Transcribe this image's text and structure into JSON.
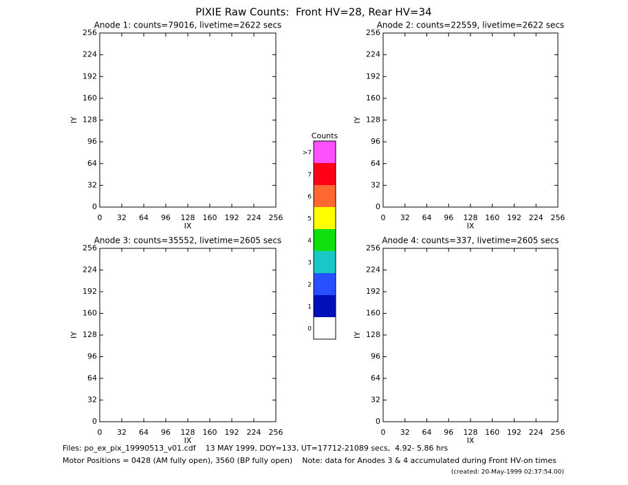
{
  "title": "PIXIE Raw Counts:  Front HV=28, Rear HV=34",
  "chart_data": [
    {
      "type": "heatmap",
      "title": "Anode 1: counts=79016, livetime=2622 secs",
      "xlabel": "IX",
      "ylabel": "IY",
      "xlim": [
        0,
        256
      ],
      "ylim": [
        0,
        256
      ],
      "xticks": [
        0,
        32,
        64,
        96,
        128,
        160,
        192,
        224,
        256
      ],
      "yticks": [
        0,
        32,
        64,
        96,
        128,
        160,
        192,
        224,
        256
      ]
    },
    {
      "type": "heatmap",
      "title": "Anode 2: counts=22559, livetime=2622 secs",
      "xlabel": "IX",
      "ylabel": "IY",
      "xlim": [
        0,
        256
      ],
      "ylim": [
        0,
        256
      ],
      "xticks": [
        0,
        32,
        64,
        96,
        128,
        160,
        192,
        224,
        256
      ],
      "yticks": [
        0,
        32,
        64,
        96,
        128,
        160,
        192,
        224,
        256
      ]
    },
    {
      "type": "heatmap",
      "title": "Anode 3: counts=35552, livetime=2605 secs",
      "xlabel": "IX",
      "ylabel": "IY",
      "xlim": [
        0,
        256
      ],
      "ylim": [
        0,
        256
      ],
      "xticks": [
        0,
        32,
        64,
        96,
        128,
        160,
        192,
        224,
        256
      ],
      "yticks": [
        0,
        32,
        64,
        96,
        128,
        160,
        192,
        224,
        256
      ]
    },
    {
      "type": "heatmap",
      "title": "Anode 4: counts=337, livetime=2605 secs",
      "xlabel": "IX",
      "ylabel": "IY",
      "xlim": [
        0,
        256
      ],
      "ylim": [
        0,
        256
      ],
      "xticks": [
        0,
        32,
        64,
        96,
        128,
        160,
        192,
        224,
        256
      ],
      "yticks": [
        0,
        32,
        64,
        96,
        128,
        160,
        192,
        224,
        256
      ]
    }
  ],
  "colorbar": {
    "title": "Counts",
    "levels": [
      "0",
      "1",
      "2",
      "3",
      "4",
      "5",
      "6",
      "7",
      ">7"
    ],
    "colors": [
      "#ffffff",
      "#0010b8",
      "#2850ff",
      "#18c8c8",
      "#10e010",
      "#ffff00",
      "#ff6830",
      "#ff0018",
      "#ff50ff"
    ]
  },
  "footer": {
    "files": "Files: po_ex_pix_19990513_v01.cdf    13 MAY 1999, DOY=133, UT=17712-21089 secs,  4.92- 5.86 hrs",
    "motor": "Motor Positions = 0428 (AM fully open), 3560 (BP fully open)    Note: data for Anodes 3 & 4 accumulated during Front HV-on times",
    "created": "(created: 20-May-1999 02:37:54.00)"
  }
}
